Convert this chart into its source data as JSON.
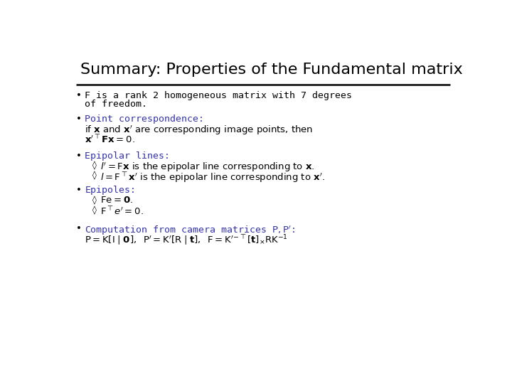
{
  "title": "Summary: Properties of the Fundamental matrix",
  "title_color": "#000000",
  "title_fontsize": 16,
  "background_color": "#ffffff",
  "blue_color": "#3333aa",
  "black_color": "#000000",
  "bullet1": "F is a rank 2 homogeneous matrix with 7 degrees\nof freedom.",
  "bullet2_header": "Point correspondence:",
  "bullet2_body1": "if $\\mathbf{x}$ and $\\mathbf{x}'$ are corresponding image points, then",
  "bullet2_body2": "$\\mathbf{x}'^{\\top}\\mathbf{F}\\mathbf{x} = 0.$",
  "bullet3_header": "Epipolar lines:",
  "bullet3_sub1": "$l' = \\mathrm{F}\\mathbf{x}$ is the epipolar line corresponding to $\\mathbf{x}$.",
  "bullet3_sub2": "$l = \\mathrm{F}^{\\top}\\mathbf{x}'$ is the epipolar line corresponding to $\\mathbf{x}'$.",
  "bullet4_header": "Epipoles:",
  "bullet4_sub1": "$\\mathrm{F}\\mathrm{e} = \\mathbf{0}.$",
  "bullet4_sub2": "$\\mathrm{F}^{\\top}e' = 0.$",
  "bullet5_header": "Computation from camera matrices $\\mathrm{P}, \\mathrm{P}'$:",
  "bullet5_body": "$\\mathrm{P} = \\mathrm{K}[\\mathrm{I} \\mid \\mathbf{0}],\\;\\; \\mathrm{P}' = \\mathrm{K}'[\\mathrm{R} \\mid \\mathbf{t}],\\;\\; \\mathrm{F} = \\mathrm{K}'^{-\\top}[\\mathbf{t}]_{\\times}\\mathrm{R}\\mathrm{K}^{-1}$"
}
